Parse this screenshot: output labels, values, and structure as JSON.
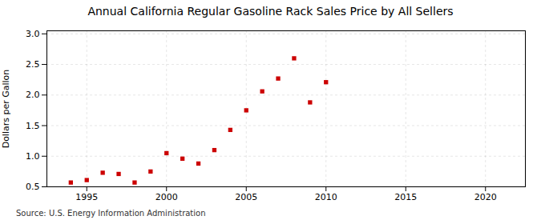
{
  "chart_data": {
    "type": "scatter",
    "title": "Annual California Regular Gasoline Rack Sales Price by All Sellers",
    "ylabel": "Dollars per Gallon",
    "source": "Source: U.S. Energy Information Administration",
    "x": [
      1994,
      1995,
      1996,
      1997,
      1998,
      1999,
      2000,
      2001,
      2002,
      2003,
      2004,
      2005,
      2006,
      2007,
      2008,
      2009,
      2010
    ],
    "values": [
      0.57,
      0.61,
      0.73,
      0.71,
      0.57,
      0.75,
      1.05,
      0.96,
      0.88,
      1.1,
      1.43,
      1.75,
      2.06,
      2.27,
      2.6,
      1.88,
      2.21
    ],
    "color": "#cc0000",
    "marker": "square",
    "xlim": [
      1992.5,
      2022.5
    ],
    "ylim": [
      0.5,
      3.05
    ],
    "xticks": [
      1995,
      2000,
      2005,
      2010,
      2015,
      2020
    ],
    "yticks": [
      0.5,
      {
        "value": 1.0,
        "label": "1.0"
      },
      1.5,
      {
        "value": 2.0,
        "label": "2.0"
      },
      2.5,
      {
        "value": 3.0,
        "label": "3.0"
      }
    ],
    "grid": true
  }
}
